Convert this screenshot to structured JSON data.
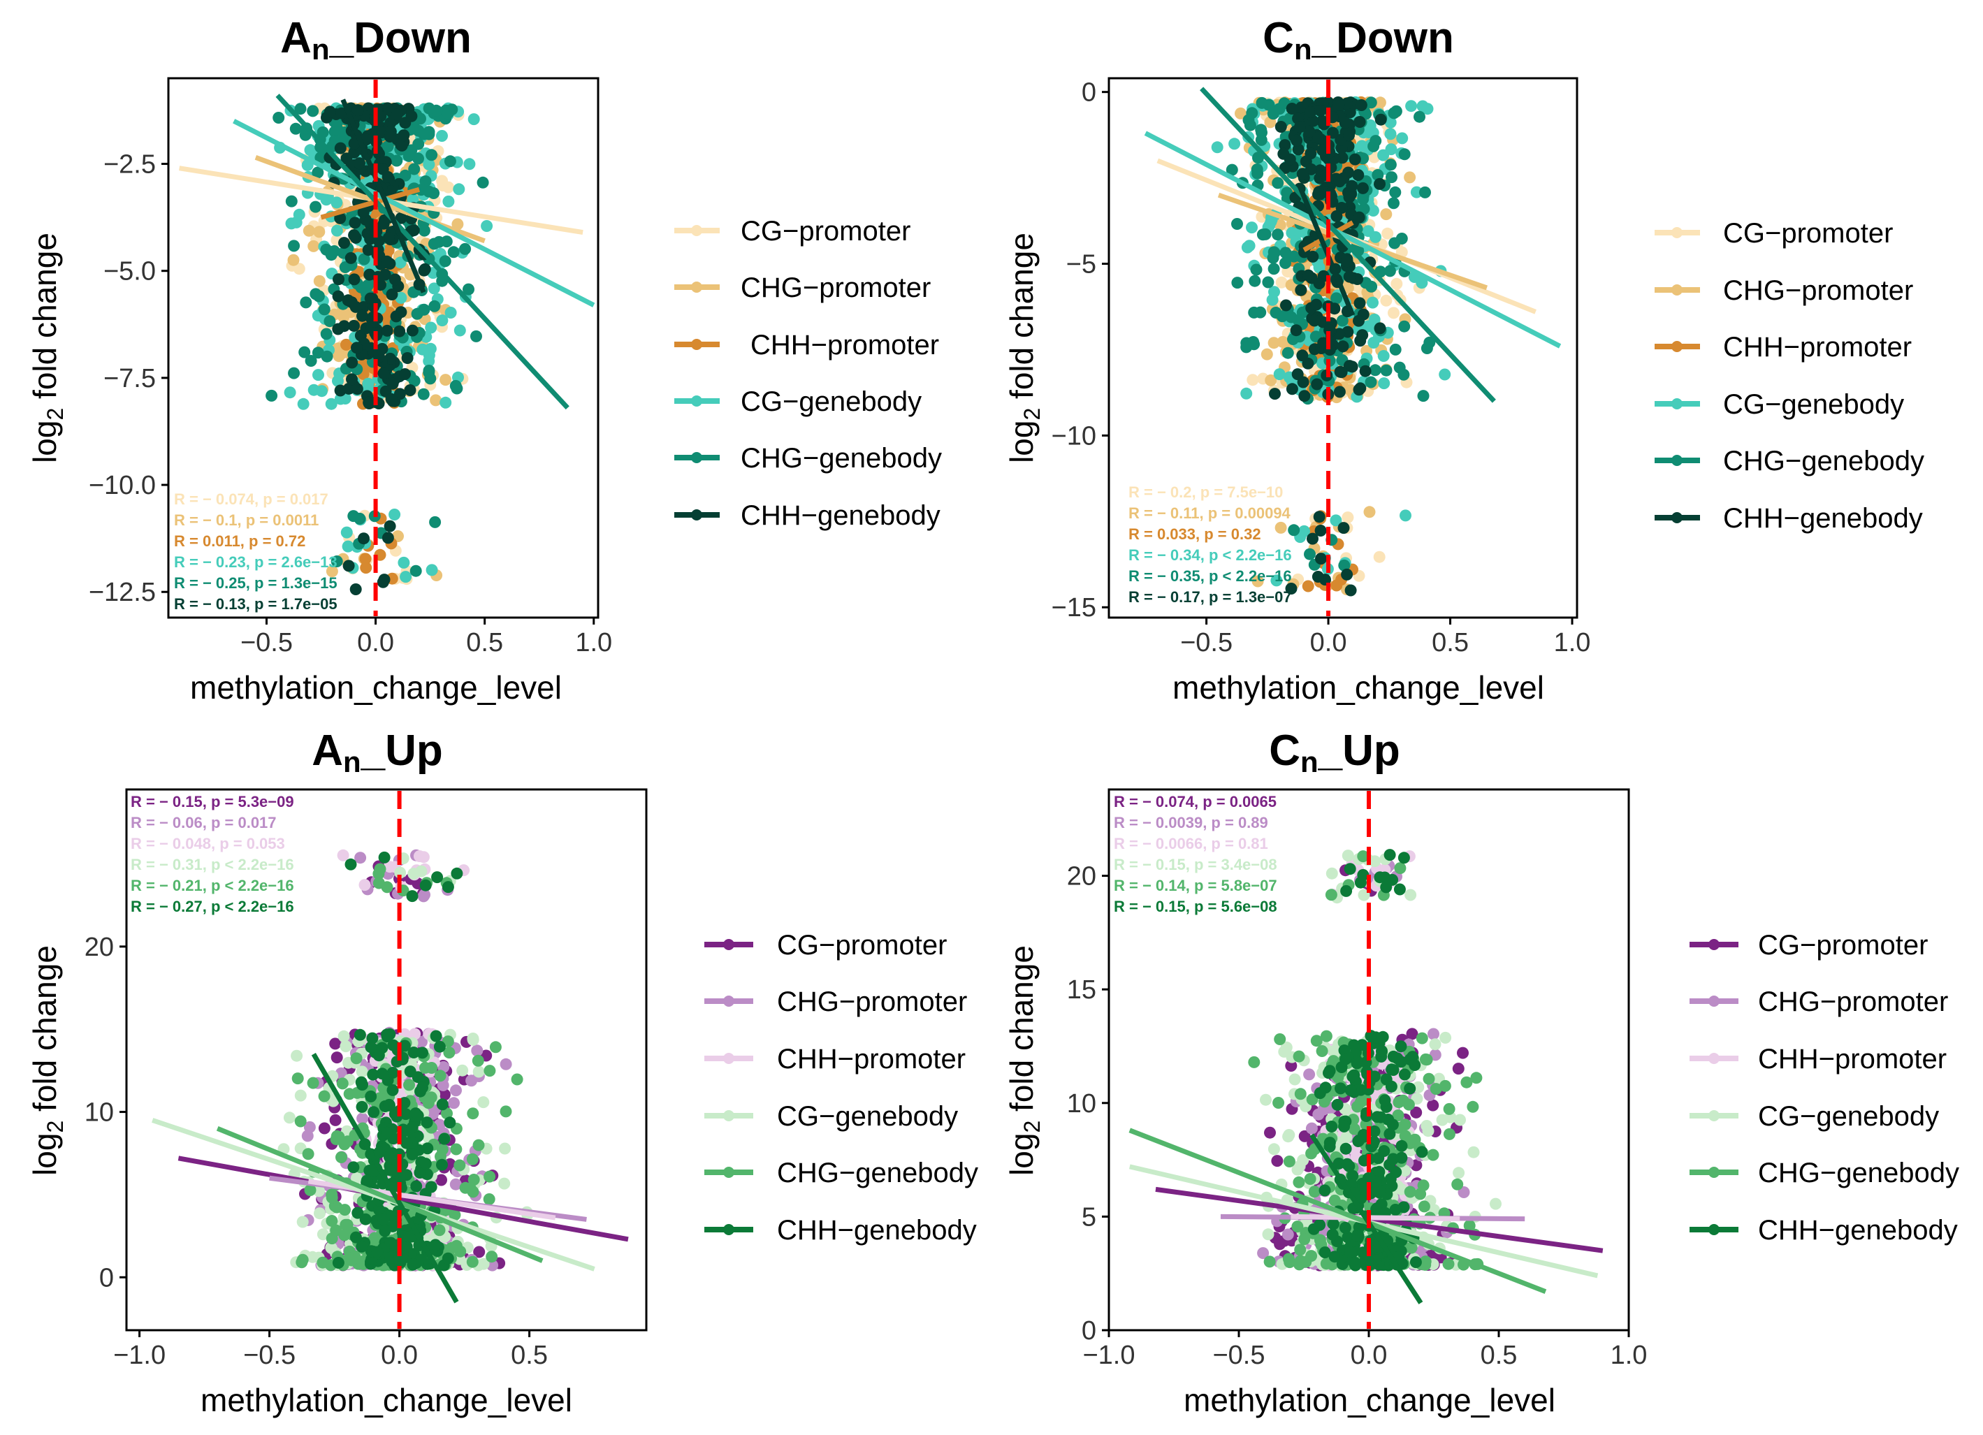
{
  "figure": {
    "xlabel": "methylation_change_level",
    "ylabel_prefix": "log",
    "ylabel_sub": "2",
    "ylabel_suffix": " fold change"
  },
  "chart_data": [
    {
      "type": "scatter",
      "id": "an_down",
      "title_main": "A",
      "title_sub": "n",
      "title_rest": "_Down",
      "xlim": [
        -0.95,
        1.02
      ],
      "ylim": [
        -13.1,
        -0.5
      ],
      "xticks": [
        -0.5,
        0.0,
        0.5,
        1.0
      ],
      "xtick_labels": [
        "−0.5",
        "0.0",
        "0.5",
        "1.0"
      ],
      "yticks": [
        -12.5,
        -10.0,
        -7.5,
        -5.0,
        -2.5
      ],
      "ytick_labels": [
        "−12.5",
        "−10.0",
        "−7.5",
        "−5.0",
        "−2.5"
      ],
      "center": 0,
      "series": [
        {
          "name": "CG−promoter",
          "color": "#FBE3B7",
          "r": -0.074,
          "p": "0.017",
          "stat": "R = − 0.074, p = 0.017",
          "fit": [
            [
              -0.9,
              -2.6
            ],
            [
              0.95,
              -4.1
            ]
          ]
        },
        {
          "name": "CHG−promoter",
          "color": "#EBC277",
          "r": -0.1,
          "p": "0.0011",
          "stat": "R = − 0.1, p = 0.0011",
          "fit": [
            [
              -0.55,
              -2.35
            ],
            [
              0.5,
              -4.3
            ]
          ]
        },
        {
          "name": "CHH−promoter",
          "color": "#D7892F",
          "r": 0.011,
          "p": "0.72",
          "stat": "R = 0.011, p = 0.72",
          "fit": [
            [
              -0.25,
              -3.75
            ],
            [
              0.2,
              -3.1
            ]
          ]
        },
        {
          "name": "CG−genebody",
          "color": "#45CCBA",
          "r": -0.23,
          "p": "2.6e−13",
          "stat": "R = − 0.23, p = 2.6e−13",
          "fit": [
            [
              -0.65,
              -1.5
            ],
            [
              1.0,
              -5.8
            ]
          ]
        },
        {
          "name": "CHG−genebody",
          "color": "#0F8C72",
          "r": -0.25,
          "p": "1.3e−15",
          "stat": "R = − 0.25, p = 1.3e−15",
          "fit": [
            [
              -0.45,
              -0.9
            ],
            [
              0.88,
              -8.2
            ]
          ]
        },
        {
          "name": "CHH−genebody",
          "color": "#053F33",
          "r": -0.13,
          "p": "1.7e−05",
          "stat": "R = − 0.13, p = 1.7e−05",
          "fit": [
            [
              -0.15,
              -1.0
            ],
            [
              0.22,
              -5.5
            ]
          ]
        }
      ]
    },
    {
      "type": "scatter",
      "id": "cn_down",
      "title_main": "C",
      "title_sub": "n",
      "title_rest": "_Down",
      "xlim": [
        -0.9,
        1.02
      ],
      "ylim": [
        -15.3,
        0.4
      ],
      "xticks": [
        -0.5,
        0.0,
        0.5,
        1.0
      ],
      "xtick_labels": [
        "−0.5",
        "0.0",
        "0.5",
        "1.0"
      ],
      "yticks": [
        -15,
        -10,
        -5,
        0
      ],
      "ytick_labels": [
        "−15",
        "−10",
        "−5",
        "0"
      ],
      "center": 0,
      "series": [
        {
          "name": "CG−promoter",
          "color": "#FBE3B7",
          "r": -0.2,
          "p": "7.5e−10",
          "stat": "R = − 0.2, p = 7.5e−10",
          "fit": [
            [
              -0.7,
              -2.0
            ],
            [
              0.85,
              -6.4
            ]
          ]
        },
        {
          "name": "CHG−promoter",
          "color": "#EBC277",
          "r": -0.11,
          "p": "0.00094",
          "stat": "R = − 0.11, p = 0.00094",
          "fit": [
            [
              -0.45,
              -3.0
            ],
            [
              0.65,
              -5.7
            ]
          ]
        },
        {
          "name": "CHH−promoter",
          "color": "#D7892F",
          "r": 0.033,
          "p": "0.32",
          "stat": "R = 0.033, p = 0.32",
          "fit": [
            [
              -0.1,
              -4.6
            ],
            [
              0.1,
              -3.8
            ]
          ]
        },
        {
          "name": "CG−genebody",
          "color": "#45CCBA",
          "r": -0.34,
          "p": "< 2.2e−16",
          "stat": "R = − 0.34, p < 2.2e−16",
          "fit": [
            [
              -0.75,
              -1.2
            ],
            [
              0.95,
              -7.4
            ]
          ]
        },
        {
          "name": "CHG−genebody",
          "color": "#0F8C72",
          "r": -0.35,
          "p": "< 2.2e−16",
          "stat": "R = − 0.35, p < 2.2e−16",
          "fit": [
            [
              -0.52,
              0.1
            ],
            [
              0.68,
              -9.0
            ]
          ]
        },
        {
          "name": "CHH−genebody",
          "color": "#053F33",
          "r": -0.17,
          "p": "1.3e−07",
          "stat": "R = − 0.17, p = 1.3e−07",
          "fit": [
            [
              -0.12,
              -2.7
            ],
            [
              0.1,
              -6.5
            ]
          ]
        }
      ]
    },
    {
      "type": "scatter",
      "id": "an_up",
      "title_main": "A",
      "title_sub": "n",
      "title_rest": "_Up",
      "xlim": [
        -1.05,
        0.95
      ],
      "ylim": [
        -3.2,
        29.5
      ],
      "xticks": [
        -1.0,
        -0.5,
        0.0,
        0.5
      ],
      "xtick_labels": [
        "−1.0",
        "−0.5",
        "0.0",
        "0.5"
      ],
      "yticks": [
        0,
        10,
        20
      ],
      "ytick_labels": [
        "0",
        "10",
        "20"
      ],
      "center": 0,
      "series": [
        {
          "name": "CG−promoter",
          "color": "#7B2384",
          "r": -0.15,
          "p": "5.3e−09",
          "stat": "R = − 0.15, p = 5.3e−09",
          "fit": [
            [
              -0.85,
              7.2
            ],
            [
              0.88,
              2.3
            ]
          ]
        },
        {
          "name": "CHG−promoter",
          "color": "#BB8CC6",
          "r": -0.06,
          "p": "0.017",
          "stat": "R = − 0.06, p = 0.017",
          "fit": [
            [
              -0.5,
              6.0
            ],
            [
              0.72,
              3.5
            ]
          ]
        },
        {
          "name": "CHH−promoter",
          "color": "#EACDE8",
          "r": -0.048,
          "p": "0.053",
          "stat": "R = − 0.048, p = 0.053",
          "fit": [
            [
              -0.35,
              5.8
            ],
            [
              0.6,
              3.6
            ]
          ]
        },
        {
          "name": "CG−genebody",
          "color": "#C8EBC9",
          "r": -0.31,
          "p": "< 2.2e−16",
          "stat": "R = − 0.31, p < 2.2e−16",
          "fit": [
            [
              -0.95,
              9.5
            ],
            [
              0.75,
              0.5
            ]
          ]
        },
        {
          "name": "CHG−genebody",
          "color": "#52B56B",
          "r": -0.21,
          "p": "< 2.2e−16",
          "stat": "R = − 0.21, p < 2.2e−16",
          "fit": [
            [
              -0.7,
              9.0
            ],
            [
              0.55,
              1.0
            ]
          ]
        },
        {
          "name": "CHH−genebody",
          "color": "#0B7A37",
          "r": -0.27,
          "p": "< 2.2e−16",
          "stat": "R = − 0.27, p < 2.2e−16",
          "fit": [
            [
              -0.33,
              13.5
            ],
            [
              0.22,
              -1.5
            ]
          ]
        }
      ]
    },
    {
      "type": "scatter",
      "id": "cn_up",
      "title_main": "C",
      "title_sub": "n",
      "title_rest": "_Up",
      "xlim": [
        -1.0,
        1.0
      ],
      "ylim": [
        0,
        23.8
      ],
      "xticks": [
        -1.0,
        -0.5,
        0.0,
        0.5,
        1.0
      ],
      "xtick_labels": [
        "−1.0",
        "−0.5",
        "0.0",
        "0.5",
        "1.0"
      ],
      "yticks": [
        0,
        5,
        10,
        15,
        20
      ],
      "ytick_labels": [
        "0",
        "5",
        "10",
        "15",
        "20"
      ],
      "center": 0,
      "series": [
        {
          "name": "CG−promoter",
          "color": "#7B2384",
          "r": -0.074,
          "p": "0.0065",
          "stat": "R = − 0.074, p = 0.0065",
          "fit": [
            [
              -0.82,
              6.2
            ],
            [
              0.9,
              3.5
            ]
          ]
        },
        {
          "name": "CHG−promoter",
          "color": "#BB8CC6",
          "r": -0.0039,
          "p": "0.89",
          "stat": "R = − 0.0039, p = 0.89",
          "fit": [
            [
              -0.57,
              5.0
            ],
            [
              0.6,
              4.9
            ]
          ]
        },
        {
          "name": "CHH−promoter",
          "color": "#EACDE8",
          "r": -0.0066,
          "p": "0.81",
          "stat": "R = − 0.0066, p = 0.81",
          "fit": [
            [
              -0.3,
              5.0
            ],
            [
              0.35,
              4.9
            ]
          ]
        },
        {
          "name": "CG−genebody",
          "color": "#C8EBC9",
          "r": -0.15,
          "p": "3.4e−08",
          "stat": "R = − 0.15, p = 3.4e−08",
          "fit": [
            [
              -0.92,
              7.2
            ],
            [
              0.88,
              2.4
            ]
          ]
        },
        {
          "name": "CHG−genebody",
          "color": "#52B56B",
          "r": -0.14,
          "p": "5.8e−07",
          "stat": "R = − 0.14, p = 5.8e−07",
          "fit": [
            [
              -0.92,
              8.8
            ],
            [
              0.68,
              1.7
            ]
          ]
        },
        {
          "name": "CHH−genebody",
          "color": "#0B7A37",
          "r": -0.15,
          "p": "5.6e−08",
          "stat": "R = − 0.15, p = 5.6e−08",
          "fit": [
            [
              -0.22,
              8.6
            ],
            [
              0.2,
              1.2
            ]
          ]
        }
      ]
    }
  ]
}
